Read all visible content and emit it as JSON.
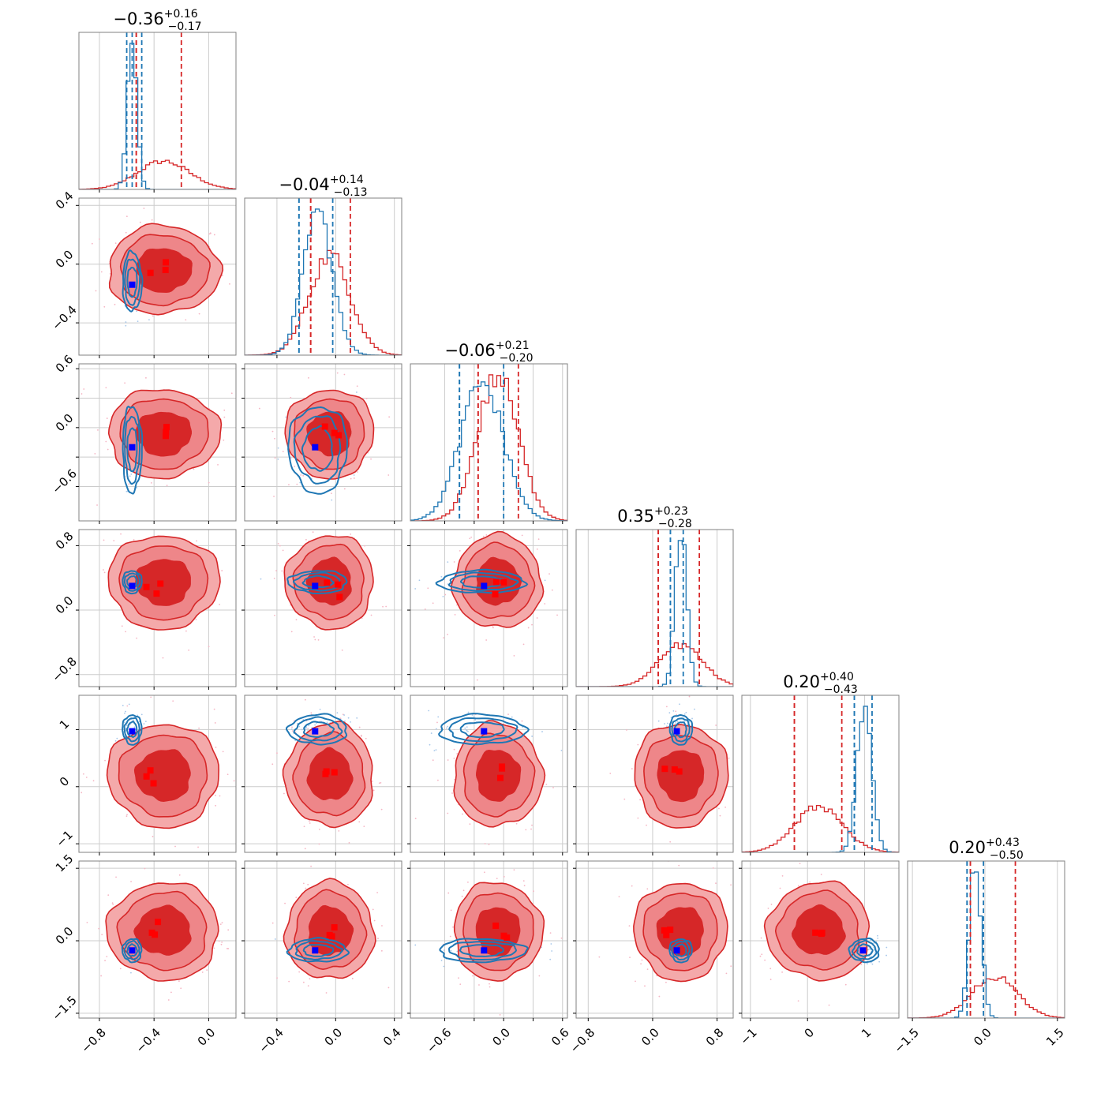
{
  "chart_data": {
    "type": "corner",
    "n_params": 6,
    "grid": true,
    "colors": {
      "red": "#d62728",
      "red_light": "#f4a9aa",
      "red_mid": "#ee8689",
      "blue": "#1f77b4",
      "blue_marker": "#0000ff",
      "red_marker": "#ff0000",
      "axis": "#808080",
      "grid": "#cccccc"
    },
    "params": [
      {
        "title": "−0.36",
        "plus": "+0.16",
        "minus": "−0.17",
        "range": [
          -0.95,
          0.2
        ],
        "ticks": [
          -0.8,
          -0.4,
          0.0
        ],
        "tick_labels": [
          "−0.8",
          "−0.4",
          "0.0"
        ],
        "red": {
          "mean": -0.33,
          "sd": 0.19,
          "q": [
            -0.53,
            -0.53,
            -0.2
          ]
        },
        "blue": {
          "mean": -0.56,
          "sd": 0.035,
          "q": [
            -0.6,
            -0.56,
            -0.49
          ]
        },
        "truth_blue": -0.56,
        "truth_red": -0.38
      },
      {
        "title": "−0.04",
        "plus": "+0.14",
        "minus": "−0.13",
        "range": [
          -0.62,
          0.45
        ],
        "ticks": [
          -0.4,
          0.0,
          0.4
        ],
        "tick_labels": [
          "−0.4",
          "0.0",
          "0.4"
        ],
        "red": {
          "mean": -0.04,
          "sd": 0.14,
          "q": [
            -0.17,
            -0.17,
            0.1
          ]
        },
        "blue": {
          "mean": -0.12,
          "sd": 0.1,
          "q": [
            -0.25,
            -0.25,
            -0.02
          ]
        },
        "truth_blue": -0.14,
        "truth_red": -0.02
      },
      {
        "title": "−0.06",
        "plus": "+0.21",
        "minus": "−0.20",
        "range": [
          -0.95,
          0.65
        ],
        "ticks": [
          -0.6,
          -0.3,
          0.0,
          0.3,
          0.6
        ],
        "tick_labels": [
          "−0.6",
          "",
          "0.0",
          "",
          "0.6"
        ],
        "red": {
          "mean": -0.06,
          "sd": 0.21,
          "q": [
            -0.26,
            -0.26,
            0.15
          ]
        },
        "blue": {
          "mean": -0.22,
          "sd": 0.22,
          "q": [
            -0.45,
            -0.45,
            0.0
          ]
        },
        "truth_blue": -0.2,
        "truth_red": -0.05
      },
      {
        "title": "0.35",
        "plus": "+0.23",
        "minus": "−0.28",
        "range": [
          -0.95,
          1.0
        ],
        "ticks": [
          -0.8,
          0.0,
          0.8
        ],
        "tick_labels": [
          "−0.8",
          "0.0",
          "0.8"
        ],
        "red": {
          "mean": 0.35,
          "sd": 0.27,
          "q": [
            0.07,
            0.07,
            0.58
          ]
        },
        "blue": {
          "mean": 0.35,
          "sd": 0.07,
          "q": [
            0.22,
            0.22,
            0.38
          ]
        },
        "truth_blue": 0.3,
        "truth_red": 0.25
      },
      {
        "title": "0.20",
        "plus": "+0.40",
        "minus": "−0.43",
        "range": [
          -1.15,
          1.6
        ],
        "ticks": [
          -1,
          0,
          1
        ],
        "tick_labels": [
          "−1",
          "0",
          "1"
        ],
        "red": {
          "mean": 0.2,
          "sd": 0.42,
          "q": [
            -0.23,
            -0.23,
            0.6
          ]
        },
        "blue": {
          "mean": 1.0,
          "sd": 0.13,
          "q": [
            0.82,
            0.82,
            1.13
          ]
        },
        "truth_blue": 0.97,
        "truth_red": 0.2
      },
      {
        "title": "0.20",
        "plus": "+0.43",
        "minus": "−0.50",
        "range": [
          -1.6,
          1.65
        ],
        "ticks": [
          -1.5,
          0.0,
          1.5
        ],
        "tick_labels": [
          "−1.5",
          "0.0",
          "1.5"
        ],
        "red": {
          "mean": 0.2,
          "sd": 0.47,
          "q": [
            -0.3,
            -0.3,
            0.63
          ]
        },
        "blue": {
          "mean": -0.2,
          "sd": 0.12,
          "q": [
            -0.37,
            -0.37,
            -0.03
          ]
        },
        "truth_blue": -0.2,
        "truth_red": 0.25
      }
    ]
  }
}
